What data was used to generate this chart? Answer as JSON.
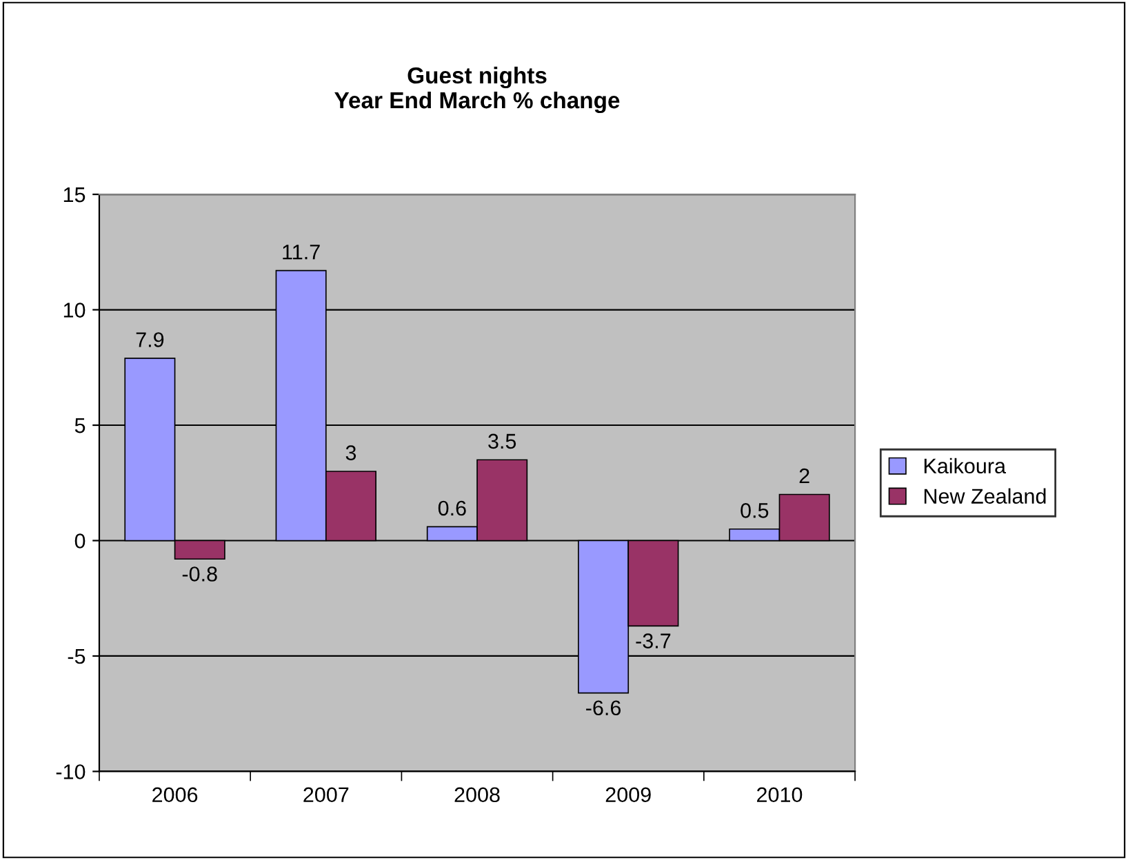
{
  "chart_data": {
    "type": "bar",
    "title": "Guest nights\nYear End March % change",
    "categories": [
      "2006",
      "2007",
      "2008",
      "2009",
      "2010"
    ],
    "series": [
      {
        "name": "Kaikoura",
        "color": "#9999ff",
        "values": [
          7.9,
          11.7,
          0.6,
          -6.6,
          0.5
        ]
      },
      {
        "name": "New Zealand",
        "color": "#993366",
        "values": [
          -0.8,
          3,
          3.5,
          -3.7,
          2
        ]
      }
    ],
    "ylim": [
      -10,
      15
    ],
    "yticks": [
      -10,
      -5,
      0,
      5,
      10,
      15
    ],
    "grid": "y",
    "legend": "right",
    "data_labels": true
  }
}
